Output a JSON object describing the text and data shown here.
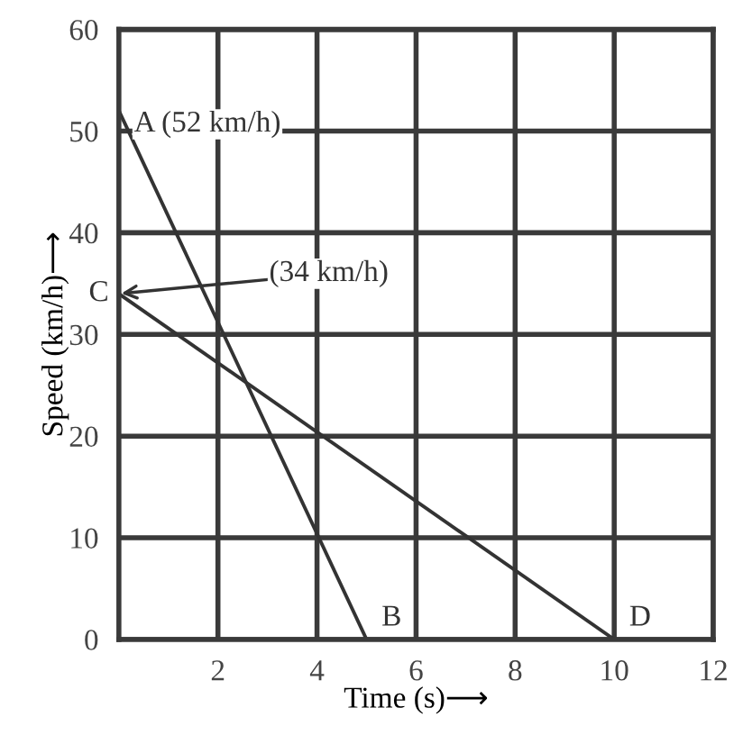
{
  "chart_data": {
    "type": "line",
    "xlabel": "Time (s)⟶",
    "ylabel": "Speed (km/h)⟶",
    "series": [
      {
        "color": "#333333",
        "x": [
          0,
          5
        ],
        "values": [
          52,
          0
        ]
      },
      {
        "color": "#333333",
        "x": [
          0,
          10
        ],
        "values": [
          34,
          0
        ]
      }
    ],
    "xlim": [
      0,
      12
    ],
    "xticks": [
      2,
      4,
      6,
      8,
      10,
      12
    ],
    "ylim": [
      0,
      60
    ],
    "yticks": [
      0,
      10,
      20,
      30,
      40,
      50,
      60
    ],
    "grid": true,
    "marker": "none",
    "line_style": "solid",
    "annotations": [
      {
        "text": "A (52 km/h)",
        "x": 0,
        "y": 52
      },
      {
        "text": "(34 km/h)",
        "x": 0,
        "y": 34
      },
      {
        "text": "C",
        "x": 0,
        "y": 34
      },
      {
        "text": "B",
        "x": 5,
        "y": 0
      },
      {
        "text": "D",
        "x": 10,
        "y": 0
      }
    ]
  }
}
